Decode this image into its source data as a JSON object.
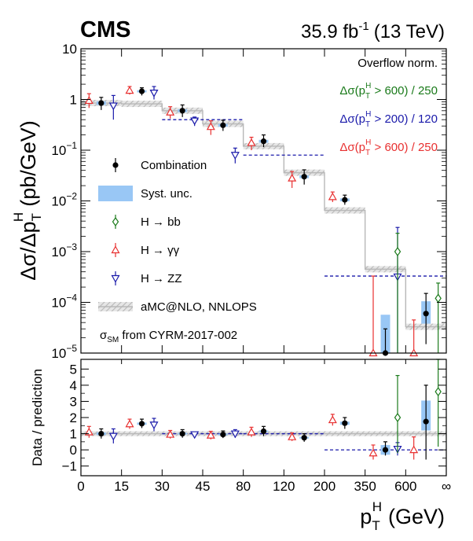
{
  "header": {
    "experiment": "CMS",
    "lumi": "35.9 fb",
    "lumi_exp": "-1",
    "energy": "(13 TeV)"
  },
  "chart_data": {
    "type": "scatter",
    "x_bin_labels": [
      "0",
      "15",
      "30",
      "45",
      "80",
      "120",
      "200",
      "350",
      "600",
      "∞"
    ],
    "xlabel": "p",
    "xlabel_sub": "T",
    "xlabel_sup": "H",
    "xlabel_unit": "(GeV)",
    "top_panel": {
      "ylabel": "Δσ/Δp",
      "ylabel_sub": "T",
      "ylabel_sup": "H",
      "ylabel_unit": "(pb/GeV)",
      "yscale": "log",
      "ylim": [
        1e-05,
        10
      ],
      "y_ticks": [
        {
          "v": 1e-05,
          "base": "10",
          "exp": "−5"
        },
        {
          "v": 0.0001,
          "base": "10",
          "exp": "−4"
        },
        {
          "v": 0.001,
          "base": "10",
          "exp": "−3"
        },
        {
          "v": 0.01,
          "base": "10",
          "exp": "−2"
        },
        {
          "v": 0.1,
          "base": "10",
          "exp": "−1"
        },
        {
          "v": 1,
          "base": "1",
          "exp": ""
        },
        {
          "v": 10,
          "base": "10",
          "exp": ""
        }
      ],
      "overflow_label": "Overflow norm.",
      "overflow_notes": [
        {
          "text": "Δσ(p",
          "sub": "T",
          "sup": "H",
          "rest": " > 600) / 250",
          "color": "#1a7a1a"
        },
        {
          "text": "Δσ(p",
          "sub": "T",
          "sup": "H",
          "rest": " > 200) / 120",
          "color": "#1a1aaa"
        },
        {
          "text": "Δσ(p",
          "sub": "T",
          "sup": "H",
          "rest": " > 600) / 250",
          "color": "#e83030"
        }
      ],
      "prediction_step": [
        0.85,
        0.82,
        0.6,
        0.33,
        0.12,
        0.036,
        0.0065,
        0.00045,
        3.3e-05
      ],
      "combination": [
        {
          "bin": 0,
          "y": 0.85,
          "lo": 0.62,
          "hi": 1.1,
          "syst_lo": 0.78,
          "syst_hi": 0.92
        },
        {
          "bin": 1,
          "y": 1.45,
          "lo": 1.2,
          "hi": 1.7,
          "syst_lo": 1.38,
          "syst_hi": 1.52
        },
        {
          "bin": 2,
          "y": 0.6,
          "lo": 0.45,
          "hi": 0.78,
          "syst_lo": 0.56,
          "syst_hi": 0.64
        },
        {
          "bin": 3,
          "y": 0.31,
          "lo": 0.24,
          "hi": 0.39,
          "syst_lo": 0.29,
          "syst_hi": 0.33
        },
        {
          "bin": 4,
          "y": 0.15,
          "lo": 0.115,
          "hi": 0.2,
          "syst_lo": 0.14,
          "syst_hi": 0.16
        },
        {
          "bin": 5,
          "y": 0.03,
          "lo": 0.021,
          "hi": 0.041,
          "syst_lo": 0.028,
          "syst_hi": 0.032
        },
        {
          "bin": 6,
          "y": 0.0105,
          "lo": 0.0084,
          "hi": 0.013,
          "syst_lo": 0.0098,
          "syst_hi": 0.0112
        },
        {
          "bin": 7,
          "y": 5.5e-06,
          "lo": 1e-06,
          "hi": 3e-05,
          "syst_lo": 1e-06,
          "syst_hi": 5.7e-05
        },
        {
          "bin": 8,
          "y": 6e-05,
          "lo": 1.5e-05,
          "hi": 0.00015,
          "syst_lo": 3.8e-05,
          "syst_hi": 0.000105
        }
      ],
      "hbb": [
        {
          "bin": 7,
          "y": 0.001,
          "lo": 5.5e-06,
          "hi": 0.0023
        },
        {
          "bin": 8,
          "y": 0.00012,
          "lo": 8e-06,
          "hi": 0.00024
        }
      ],
      "hgg": [
        {
          "bin": 0,
          "y": 0.95,
          "lo": 0.68,
          "hi": 1.3
        },
        {
          "bin": 1,
          "y": 1.5,
          "lo": 1.25,
          "hi": 1.8
        },
        {
          "bin": 2,
          "y": 0.56,
          "lo": 0.42,
          "hi": 0.72
        },
        {
          "bin": 3,
          "y": 0.29,
          "lo": 0.2,
          "hi": 0.38
        },
        {
          "bin": 4,
          "y": 0.14,
          "lo": 0.1,
          "hi": 0.18
        },
        {
          "bin": 5,
          "y": 0.028,
          "lo": 0.018,
          "hi": 0.038
        },
        {
          "bin": 6,
          "y": 0.012,
          "lo": 0.0095,
          "hi": 0.015
        },
        {
          "bin": 7,
          "y": 5.5e-06,
          "lo": 1e-06,
          "hi": 0.00033
        },
        {
          "bin": 8,
          "y": 5.5e-06,
          "lo": 1e-06,
          "hi": 4.5e-05
        }
      ],
      "hzz": [
        {
          "bin": 0,
          "y": 0.75,
          "lo": 0.4,
          "hi": 1.2
        },
        {
          "bin": 1,
          "y": 1.35,
          "lo": 1.0,
          "hi": 1.8
        },
        {
          "bin": 2,
          "y": 0.38,
          "lo": 0.3,
          "hi": 0.45
        },
        {
          "bin": 3,
          "y": 0.08,
          "lo": 0.055,
          "hi": 0.11
        },
        {
          "bin": 7,
          "y": 0.00032,
          "lo": 1e-06,
          "hi": 0.003
        }
      ],
      "hzz_ranges": [
        {
          "x0": 2,
          "x1": 4,
          "y": 0.4
        },
        {
          "x0": 4,
          "x1": 6,
          "y": 0.08
        },
        {
          "x0": 6,
          "x1": 9,
          "y": 0.00033
        }
      ]
    },
    "bottom_panel": {
      "ylabel": "Data / prediction",
      "ylim": [
        -1.6,
        5.6
      ],
      "y_ticks": [
        -1,
        0,
        1,
        2,
        3,
        4,
        5
      ],
      "y_tick_labels": [
        "−1",
        "0",
        "1",
        "2",
        "3",
        "4",
        "5"
      ],
      "prediction_band": [
        0.85,
        1.15
      ],
      "combination": [
        {
          "bin": 0,
          "y": 1.0,
          "lo": 0.7,
          "hi": 1.3,
          "syst_lo": 0.92,
          "syst_hi": 1.08
        },
        {
          "bin": 1,
          "y": 1.62,
          "lo": 1.35,
          "hi": 1.9,
          "syst_lo": 1.55,
          "syst_hi": 1.69
        },
        {
          "bin": 2,
          "y": 1.0,
          "lo": 0.75,
          "hi": 1.25,
          "syst_lo": 0.95,
          "syst_hi": 1.05
        },
        {
          "bin": 3,
          "y": 0.95,
          "lo": 0.73,
          "hi": 1.17,
          "syst_lo": 0.9,
          "syst_hi": 1.0
        },
        {
          "bin": 4,
          "y": 1.15,
          "lo": 0.85,
          "hi": 1.45,
          "syst_lo": 1.1,
          "syst_hi": 1.2
        },
        {
          "bin": 5,
          "y": 0.75,
          "lo": 0.5,
          "hi": 1.0,
          "syst_lo": 0.7,
          "syst_hi": 0.8
        },
        {
          "bin": 6,
          "y": 1.65,
          "lo": 1.3,
          "hi": 2.0,
          "syst_lo": 1.55,
          "syst_hi": 1.75
        },
        {
          "bin": 7,
          "y": 0.0,
          "lo": -0.35,
          "hi": 0.5,
          "syst_lo": -0.3,
          "syst_hi": 0.3
        },
        {
          "bin": 8,
          "y": 1.75,
          "lo": -0.6,
          "hi": 4.0,
          "syst_lo": 1.2,
          "syst_hi": 3.05
        }
      ],
      "hbb": [
        {
          "bin": 7,
          "y": 2.0,
          "lo": -0.2,
          "hi": 4.6
        },
        {
          "bin": 8,
          "y": 3.6,
          "lo": 0.2,
          "hi": 5.6
        }
      ],
      "hgg": [
        {
          "bin": 0,
          "y": 1.1,
          "lo": 0.75,
          "hi": 1.45
        },
        {
          "bin": 1,
          "y": 1.6,
          "lo": 1.3,
          "hi": 1.9
        },
        {
          "bin": 2,
          "y": 0.95,
          "lo": 0.7,
          "hi": 1.2
        },
        {
          "bin": 3,
          "y": 0.9,
          "lo": 0.65,
          "hi": 1.15
        },
        {
          "bin": 4,
          "y": 1.1,
          "lo": 0.8,
          "hi": 1.4
        },
        {
          "bin": 5,
          "y": 0.8,
          "lo": 0.55,
          "hi": 1.05
        },
        {
          "bin": 6,
          "y": 1.85,
          "lo": 1.5,
          "hi": 2.2
        },
        {
          "bin": 7,
          "y": -0.2,
          "lo": -0.6,
          "hi": 0.3
        },
        {
          "bin": 8,
          "y": 0.0,
          "lo": -0.6,
          "hi": 0.8
        }
      ],
      "hzz": [
        {
          "bin": 0,
          "y": 0.85,
          "lo": 0.4,
          "hi": 1.3
        },
        {
          "bin": 1,
          "y": 1.55,
          "lo": 1.15,
          "hi": 1.95
        },
        {
          "bin": 2,
          "y": 0.95,
          "lo": 0.8,
          "hi": 1.1
        },
        {
          "bin": 3,
          "y": 1.0,
          "lo": 0.75,
          "hi": 1.25
        },
        {
          "bin": 7,
          "y": 0.05,
          "lo": -0.35,
          "hi": 0.45
        }
      ],
      "hzz_ranges": [
        {
          "x0": 2,
          "x1": 4,
          "y": 1.0
        },
        {
          "x0": 4,
          "x1": 6,
          "y": 1.0
        },
        {
          "x0": 6,
          "x1": 9,
          "y": 0.0
        }
      ]
    },
    "legend": [
      {
        "key": "combination",
        "label": "Combination"
      },
      {
        "key": "syst",
        "label": "Syst. unc."
      },
      {
        "key": "hbb",
        "label": "H → bb"
      },
      {
        "key": "hgg",
        "label": "H → γγ"
      },
      {
        "key": "hzz",
        "label": "H → ZZ"
      },
      {
        "key": "pred",
        "label": "aMC@NLO, NNLOPS"
      },
      {
        "key": "sm",
        "label": "σ",
        "sub": "SM",
        "rest": " from CYRM-2017-002"
      }
    ],
    "colors": {
      "combination": "#000000",
      "syst": "#99c7f5",
      "hbb": "#1a7a1a",
      "hgg": "#e83030",
      "hzz": "#1a1aaa",
      "prediction": "#b8b8b8"
    }
  }
}
